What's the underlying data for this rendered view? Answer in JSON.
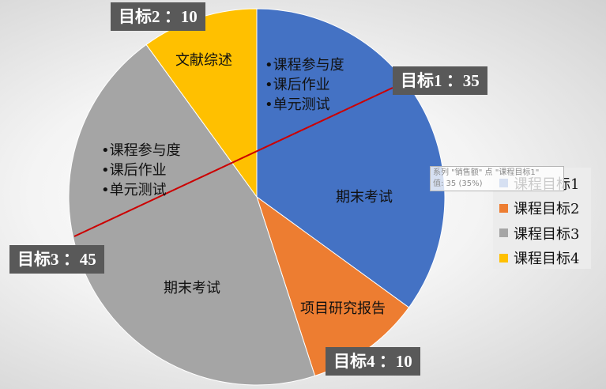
{
  "chart_data": {
    "type": "pie",
    "title": "",
    "categories": [
      "课程目标1",
      "课程目标2",
      "课程目标3",
      "课程目标4"
    ],
    "values": [
      35,
      10,
      45,
      10
    ],
    "colors": [
      "#4472c4",
      "#ffc000",
      "#a5a5a5",
      "#ed7d31"
    ],
    "legend_colors": [
      "#4472c4",
      "#ed7d31",
      "#a5a5a5",
      "#ffc000"
    ],
    "legend_position": "right",
    "start_angle_deg": 0,
    "direction": "clockwise",
    "slices": [
      {
        "category": "课程目标1",
        "value": 35,
        "color": "#4472c4",
        "callout": "目标1 ：35",
        "segments": [
          [
            "•课程参与度",
            "•课后作业",
            "•单元测试"
          ],
          [
            "期末考试"
          ]
        ]
      },
      {
        "category": "课程目标4",
        "value": 10,
        "color": "#ed7d31",
        "callout": "目标4 ：10",
        "segments": [
          [
            "项目研究报告"
          ]
        ]
      },
      {
        "category": "课程目标3",
        "value": 45,
        "color": "#a5a5a5",
        "callout": "目标3 ：45",
        "segments": [
          [
            "期末考试"
          ],
          [
            "•课程参与度",
            "•课后作业",
            "•单元测试"
          ]
        ]
      },
      {
        "category": "课程目标2",
        "value": 10,
        "color": "#ffc000",
        "callout": "目标2 ：10",
        "segments": [
          [
            "文献综述"
          ]
        ]
      }
    ],
    "dividers": [
      {
        "color": "#cc0000"
      }
    ],
    "tooltip": {
      "line1": "系列 \"销售额\" 点 \"课程目标1\"",
      "line2": "值: 35 (35%)"
    }
  }
}
